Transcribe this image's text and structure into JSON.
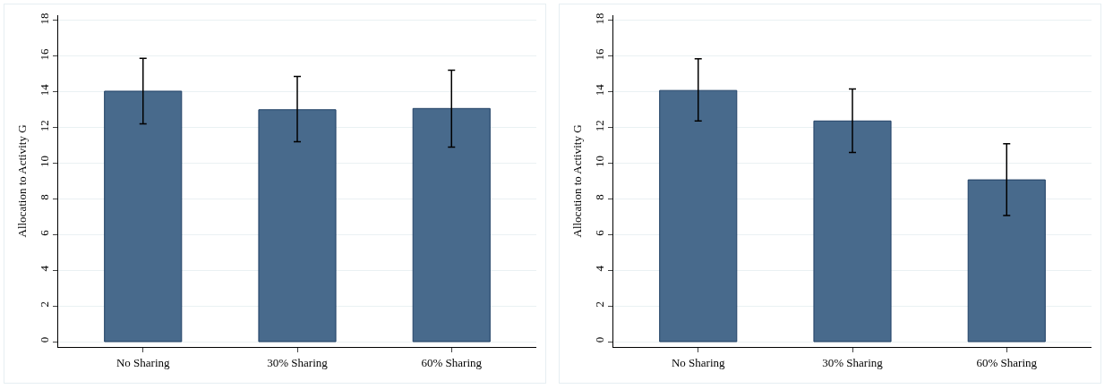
{
  "chart_data": [
    {
      "type": "bar",
      "ylabel": "Allocation to Activity G",
      "categories": [
        "No Sharing",
        "30% Sharing",
        "60% Sharing"
      ],
      "color": "#486a8c",
      "values": [
        14.04,
        13.0,
        13.07
      ],
      "errors": [
        [
          12.21,
          15.88
        ],
        [
          11.2,
          14.87
        ],
        [
          10.91,
          15.22
        ]
      ],
      "ylim": [
        -0.3,
        18.3
      ],
      "yticks": [
        0,
        2,
        4,
        6,
        8,
        10,
        12,
        14,
        16,
        18
      ],
      "grid": "y"
    },
    {
      "type": "bar",
      "ylabel": "Allocation to Activity G",
      "categories": [
        "No Sharing",
        "30% Sharing",
        "60% Sharing"
      ],
      "color": "#486a8c",
      "values": [
        14.08,
        12.37,
        9.07
      ],
      "errors": [
        [
          12.37,
          15.86
        ],
        [
          10.6,
          14.16
        ],
        [
          7.07,
          11.09
        ]
      ],
      "ylim": [
        -0.3,
        18.3
      ],
      "yticks": [
        0,
        2,
        4,
        6,
        8,
        10,
        12,
        14,
        16,
        18
      ],
      "grid": "y"
    }
  ]
}
